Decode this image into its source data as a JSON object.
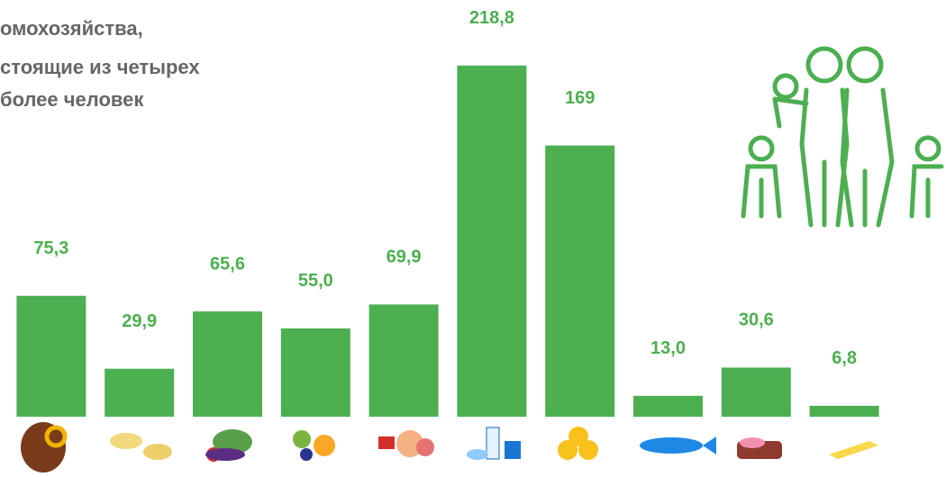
{
  "chart_data": {
    "type": "bar",
    "title": [
      "омохозяйства,",
      "стоящие из четырех",
      "более человек"
    ],
    "categories": [
      null,
      null,
      null,
      null,
      null,
      null,
      null,
      null,
      null,
      null
    ],
    "values": [
      75.3,
      29.9,
      65.6,
      55.0,
      69.9,
      218.8,
      169,
      13.0,
      30.6,
      6.8
    ],
    "value_labels": [
      "75,3",
      "29,9",
      "65,6",
      "55,0",
      "69,9",
      "218,8",
      "169",
      "13,0",
      "30,6",
      "6,8"
    ],
    "color": "#4caf50",
    "ylim": [
      0,
      240
    ]
  }
}
